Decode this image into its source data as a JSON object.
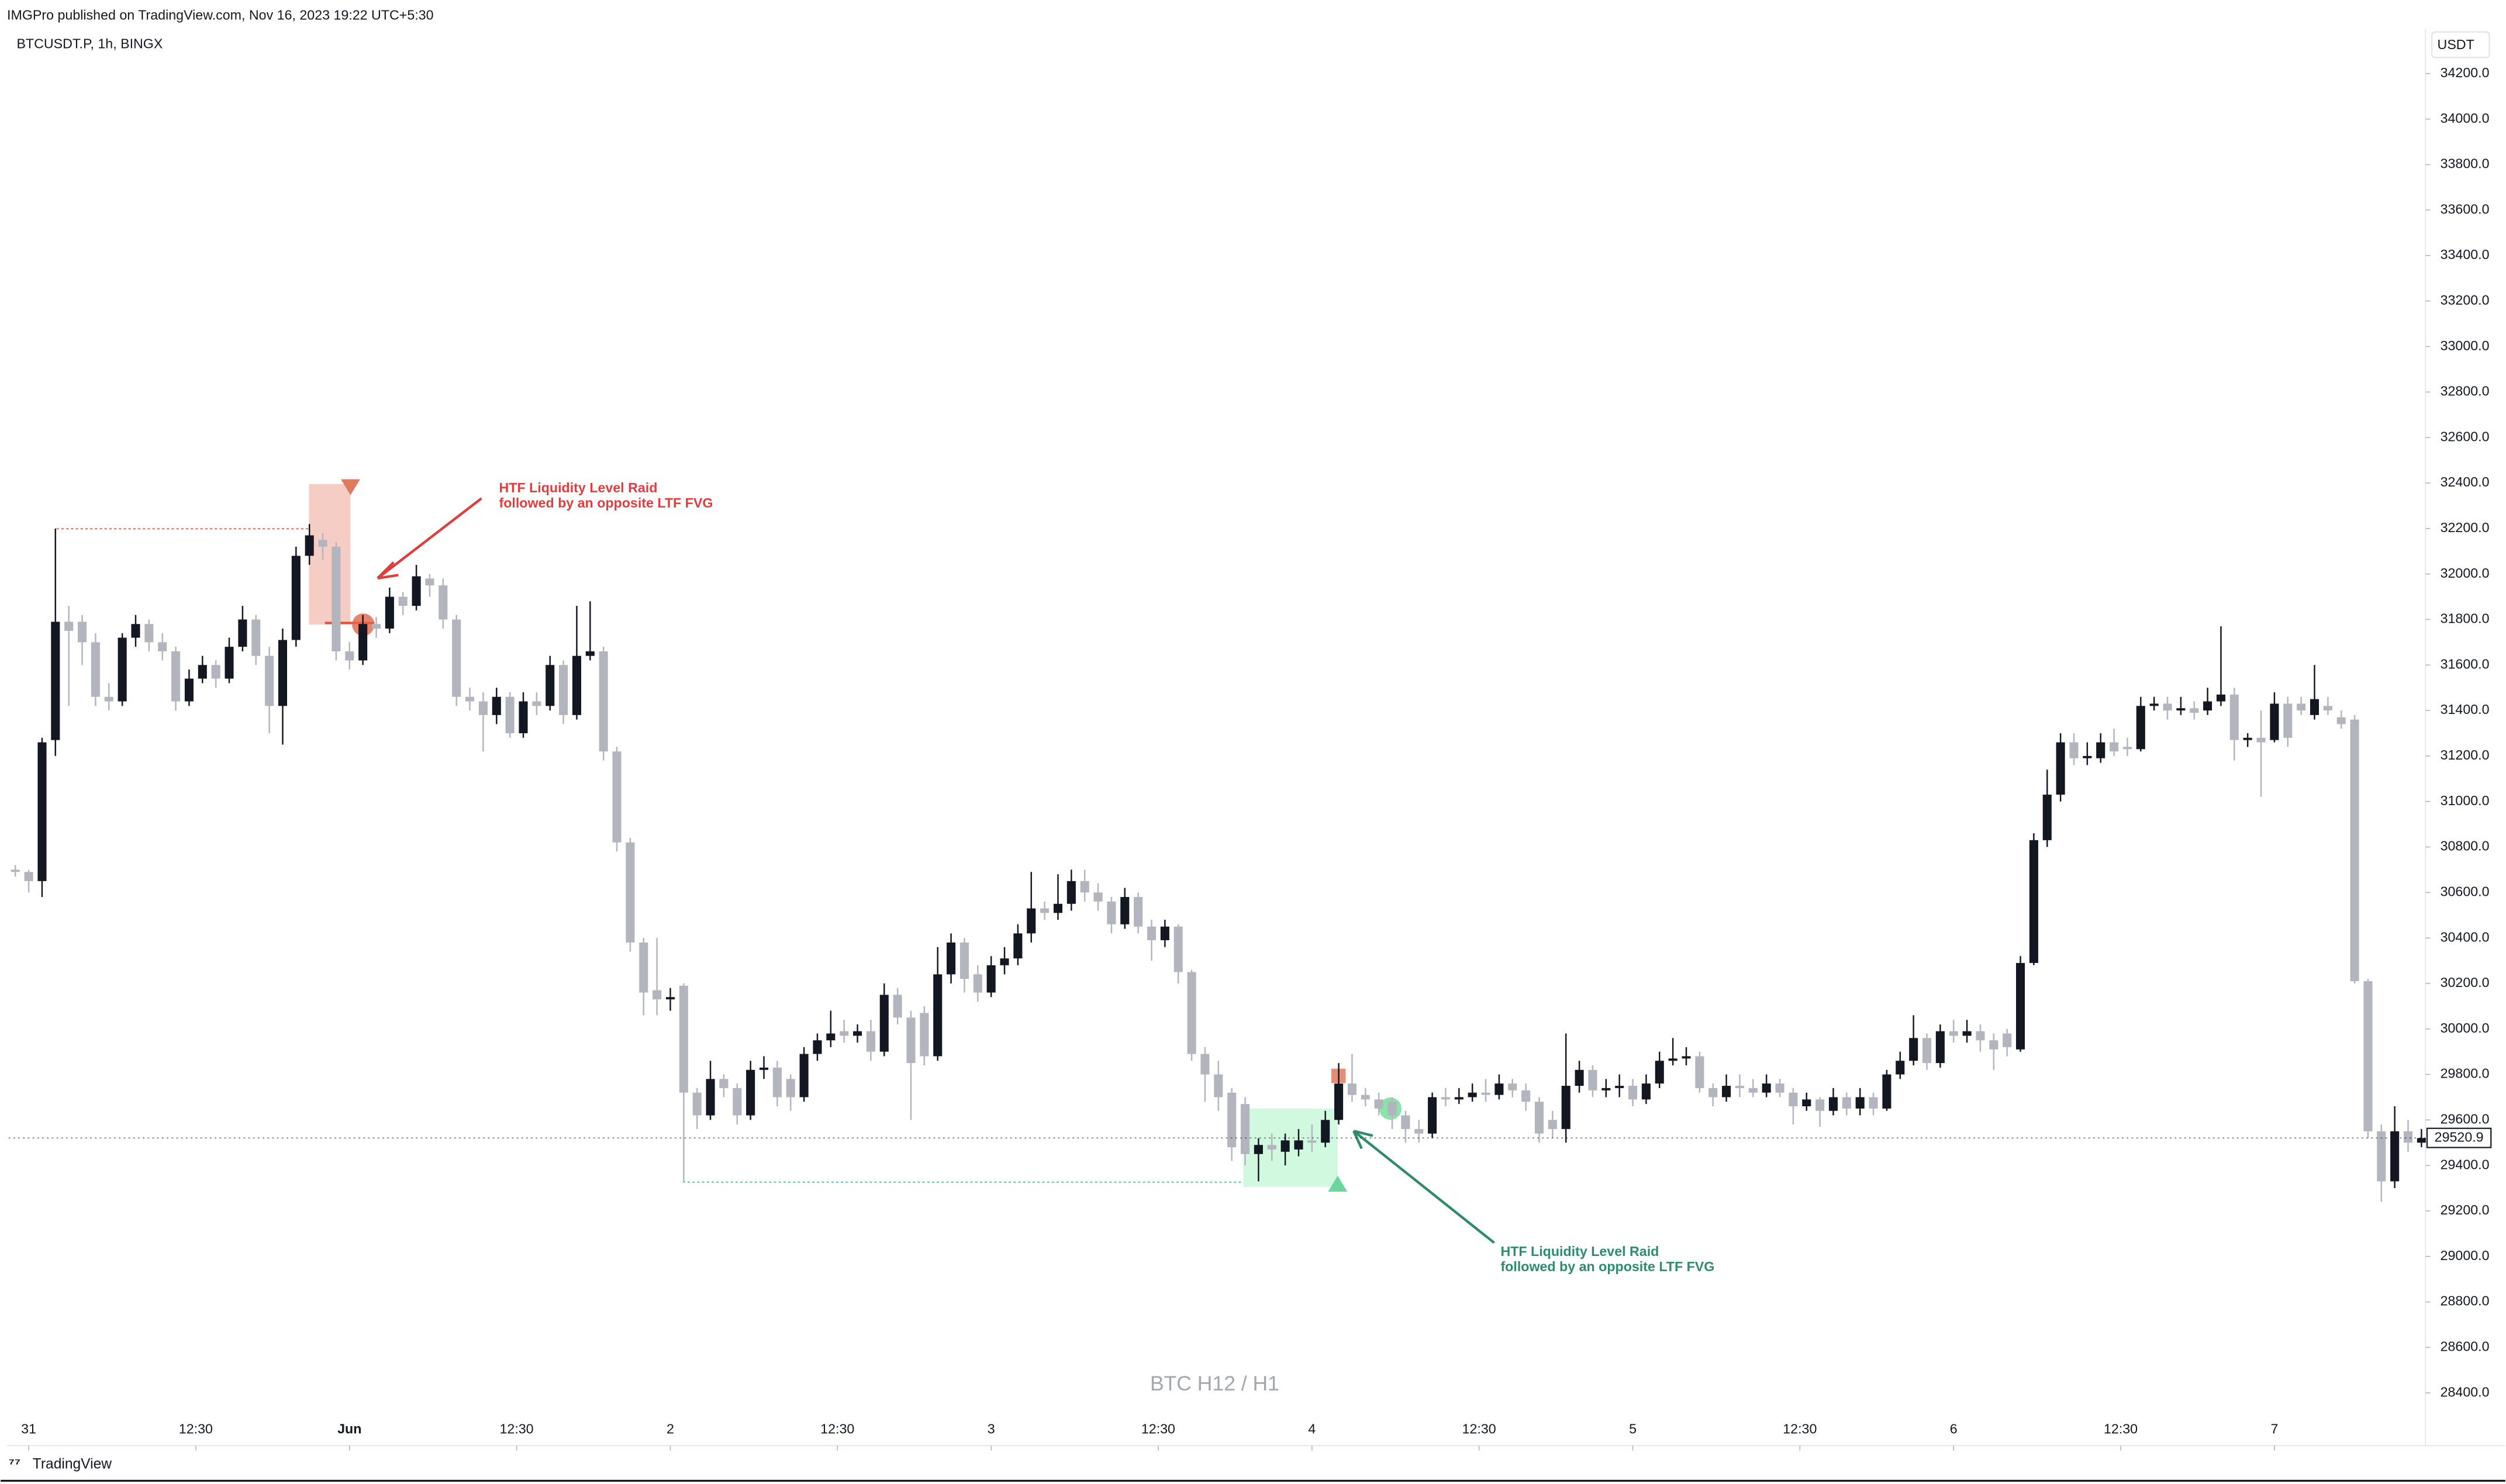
{
  "chart_data": {
    "type": "candlestick",
    "header": "IMGPro published on TradingView.com, Nov 16, 2023 19:22 UTC+5:30",
    "symbol": "BTCUSDT.P, 1h, BINGX",
    "currency": "USDT",
    "title": "BTC H12 / H1",
    "footer": "TradingView",
    "up_color": "#131722",
    "down_color": "#b2b5be",
    "last_price": 29520.9,
    "annotations": [
      {
        "lines": [
          "HTF Liquidity Level Raid",
          "followed by an opposite LTF FVG"
        ],
        "color": "#e03e3e"
      },
      {
        "lines": [
          "HTF Liquidity Level Raid",
          "followed by an opposite LTF FVG"
        ],
        "color": "#2e8b6b"
      }
    ],
    "xlim": [
      -0.5,
      180.3
    ],
    "xticks": [
      {
        "value": 1,
        "label": "31"
      },
      {
        "value": 13.5,
        "label": "12:30"
      },
      {
        "value": 25,
        "label": "Jun"
      },
      {
        "value": 37.5,
        "label": "12:30"
      },
      {
        "value": 49,
        "label": "2"
      },
      {
        "value": 61.5,
        "label": "12:30"
      },
      {
        "value": 73,
        "label": "3"
      },
      {
        "value": 85.5,
        "label": "12:30"
      },
      {
        "value": 97,
        "label": "4"
      },
      {
        "value": 109.5,
        "label": "12:30"
      },
      {
        "value": 121,
        "label": "5"
      },
      {
        "value": 133.5,
        "label": "12:30"
      },
      {
        "value": 145,
        "label": "6"
      },
      {
        "value": 157.5,
        "label": "12:30"
      },
      {
        "value": 169,
        "label": "7"
      }
    ],
    "ylim": [
      28168,
      34397
    ],
    "yticks": [
      {
        "value": 28400,
        "label": "28400.0"
      },
      {
        "value": 28600,
        "label": "28600.0"
      },
      {
        "value": 28800,
        "label": "28800.0"
      },
      {
        "value": 29000,
        "label": "29000.0"
      },
      {
        "value": 29200,
        "label": "29200.0"
      },
      {
        "value": 29400,
        "label": "29400.0"
      },
      {
        "value": 29600,
        "label": "29600.0"
      },
      {
        "value": 29800,
        "label": "29800.0"
      },
      {
        "value": 30000,
        "label": "30000.0"
      },
      {
        "value": 30200,
        "label": "30200.0"
      },
      {
        "value": 30400,
        "label": "30400.0"
      },
      {
        "value": 30600,
        "label": "30600.0"
      },
      {
        "value": 30800,
        "label": "30800.0"
      },
      {
        "value": 31000,
        "label": "31000.0"
      },
      {
        "value": 31200,
        "label": "31200.0"
      },
      {
        "value": 31400,
        "label": "31400.0"
      },
      {
        "value": 31600,
        "label": "31600.0"
      },
      {
        "value": 31800,
        "label": "31800.0"
      },
      {
        "value": 32000,
        "label": "32000.0"
      },
      {
        "value": 32200,
        "label": "32200.0"
      },
      {
        "value": 32400,
        "label": "32400.0"
      },
      {
        "value": 32600,
        "label": "32600.0"
      },
      {
        "value": 32800,
        "label": "32800.0"
      },
      {
        "value": 33000,
        "label": "33000.0"
      },
      {
        "value": 33200,
        "label": "33200.0"
      },
      {
        "value": 33400,
        "label": "33400.0"
      },
      {
        "value": 33600,
        "label": "33600.0"
      },
      {
        "value": 33800,
        "label": "33800.0"
      },
      {
        "value": 34000,
        "label": "34000.0"
      },
      {
        "value": 34200,
        "label": "34200.0"
      }
    ],
    "open": [
      30700,
      30690,
      30650,
      31270,
      31790,
      31790,
      31700,
      31460,
      31440,
      31720,
      31780,
      31700,
      31660,
      31440,
      31540,
      31600,
      31540,
      31680,
      31800,
      31640,
      31420,
      31710,
      32080,
      32150,
      32120,
      31660,
      31620,
      31780,
      31760,
      31900,
      31860,
      31980,
      31950,
      31800,
      31460,
      31440,
      31380,
      31460,
      31300,
      31440,
      31420,
      31600,
      31380,
      31640,
      31660,
      31220,
      30820,
      30380,
      30170,
      30130,
      30190,
      29720,
      29620,
      29780,
      29740,
      29620,
      29820,
      29830,
      29780,
      29700,
      29890,
      29950,
      29990,
      29970,
      29990,
      29900,
      30150,
      30050,
      30070,
      29880,
      30240,
      30380,
      30240,
      30160,
      30280,
      30310,
      30420,
      30530,
      30510,
      30550,
      30650,
      30600,
      30560,
      30460,
      30580,
      30450,
      30390,
      30450,
      30250,
      29890,
      29800,
      29720,
      29670,
      29450,
      29490,
      29460,
      29470,
      29510,
      29500,
      29600,
      29760,
      29710,
      29690,
      29680,
      29620,
      29560,
      29540,
      29700,
      29690,
      29700,
      29720,
      29710,
      29760,
      29730,
      29680,
      29600,
      29560,
      29750,
      29820,
      29730,
      29740,
      29750,
      29690,
      29760,
      29860,
      29870,
      29880,
      29740,
      29700,
      29750,
      29740,
      29720,
      29760,
      29720,
      29660,
      29690,
      29640,
      29700,
      29650,
      29700,
      29650,
      29800,
      29860,
      29960,
      29850,
      29990,
      29970,
      29990,
      29950,
      29980,
      29910,
      30290,
      30830,
      31030,
      31260,
      31190,
      31190,
      31260,
      31240,
      31230,
      31420,
      31430,
      31400,
      31410,
      31400,
      31440,
      31470,
      31270,
      31280,
      31270,
      31430,
      31430,
      31380,
      31420,
      31370,
      31360,
      30210,
      29550,
      29330,
      29550,
      29500
    ],
    "high": [
      30720,
      30700,
      31280,
      32200,
      31860,
      31820,
      31740,
      31520,
      31740,
      31820,
      31800,
      31740,
      31680,
      31580,
      31640,
      31620,
      31720,
      31860,
      31820,
      31680,
      31760,
      32120,
      32220,
      32180,
      32140,
      31700,
      31820,
      31810,
      31940,
      31920,
      32040,
      32000,
      31980,
      31820,
      31500,
      31480,
      31500,
      31480,
      31480,
      31480,
      31640,
      31620,
      31860,
      31880,
      31680,
      31240,
      30840,
      30400,
      30400,
      30180,
      30200,
      29740,
      29860,
      29800,
      29760,
      29860,
      29880,
      29860,
      29800,
      29920,
      29980,
      30080,
      30040,
      30020,
      30040,
      30200,
      30180,
      30080,
      30100,
      30360,
      30420,
      30400,
      30280,
      30320,
      30360,
      30460,
      30690,
      30560,
      30680,
      30700,
      30700,
      30640,
      30580,
      30620,
      30600,
      30480,
      30480,
      30460,
      30260,
      29920,
      29860,
      29740,
      29700,
      29520,
      29540,
      29540,
      29560,
      29580,
      29640,
      29850,
      29890,
      29740,
      29720,
      29700,
      29640,
      29600,
      29720,
      29740,
      29740,
      29760,
      29780,
      29800,
      29780,
      29760,
      29700,
      29640,
      29980,
      29860,
      29840,
      29780,
      29800,
      29780,
      29800,
      29900,
      29960,
      29920,
      29900,
      29760,
      29800,
      29800,
      29780,
      29800,
      29780,
      29740,
      29720,
      29700,
      29740,
      29720,
      29740,
      29720,
      29820,
      29900,
      30060,
      29980,
      30020,
      30040,
      30040,
      30020,
      29980,
      30000,
      30320,
      30860,
      31140,
      31300,
      31300,
      31260,
      31300,
      31320,
      31280,
      31460,
      31460,
      31460,
      31460,
      31440,
      31500,
      31770,
      31500,
      31300,
      31400,
      31480,
      31460,
      31460,
      31600,
      31460,
      31400,
      31380,
      30220,
      29580,
      29660,
      29600,
      29560
    ],
    "low": [
      30670,
      30600,
      30580,
      31200,
      31420,
      31600,
      31420,
      31400,
      31420,
      31680,
      31660,
      31620,
      31400,
      31420,
      31520,
      31500,
      31520,
      31660,
      31600,
      31300,
      31250,
      31680,
      32040,
      32060,
      31620,
      31580,
      31600,
      31720,
      31740,
      31820,
      31840,
      31900,
      31760,
      31420,
      31400,
      31220,
      31340,
      31280,
      31280,
      31380,
      31400,
      31340,
      31360,
      31620,
      31180,
      30780,
      30340,
      30060,
      30060,
      30080,
      29330,
      29560,
      29600,
      29700,
      29580,
      29600,
      29780,
      29660,
      29640,
      29680,
      29860,
      29920,
      29940,
      29940,
      29860,
      29880,
      30020,
      29600,
      29840,
      29860,
      30200,
      30160,
      30120,
      30140,
      30240,
      30280,
      30380,
      30480,
      30480,
      30520,
      30560,
      30520,
      30420,
      30440,
      30420,
      30300,
      30360,
      30200,
      29860,
      29680,
      29640,
      29420,
      29400,
      29330,
      29420,
      29400,
      29440,
      29460,
      29480,
      29580,
      29680,
      29660,
      29620,
      29560,
      29500,
      29500,
      29520,
      29660,
      29670,
      29680,
      29680,
      29690,
      29700,
      29640,
      29500,
      29520,
      29500,
      29720,
      29700,
      29700,
      29700,
      29660,
      29670,
      29740,
      29840,
      29840,
      29720,
      29660,
      29680,
      29700,
      29700,
      29700,
      29700,
      29580,
      29640,
      29570,
      29620,
      29620,
      29620,
      29620,
      29640,
      29780,
      29840,
      29820,
      29830,
      29940,
      29940,
      29900,
      29820,
      29880,
      29900,
      30280,
      30800,
      31000,
      31160,
      31160,
      31170,
      31200,
      31200,
      31220,
      31400,
      31360,
      31380,
      31360,
      31380,
      31420,
      31180,
      31240,
      31020,
      31260,
      31240,
      31380,
      31360,
      31380,
      31320,
      30200,
      29520,
      29240,
      29300,
      29460,
      29480
    ],
    "close": [
      30690,
      30650,
      31260,
      31790,
      31750,
      31700,
      31460,
      31440,
      31720,
      31780,
      31700,
      31660,
      31440,
      31540,
      31600,
      31540,
      31680,
      31800,
      31640,
      31420,
      31710,
      32080,
      32170,
      32120,
      31660,
      31620,
      31780,
      31760,
      31900,
      31860,
      31990,
      31950,
      31800,
      31460,
      31440,
      31380,
      31460,
      31300,
      31440,
      31420,
      31600,
      31380,
      31640,
      31660,
      31220,
      30820,
      30380,
      30160,
      30130,
      30140,
      29720,
      29620,
      29780,
      29740,
      29620,
      29820,
      29830,
      29700,
      29700,
      29890,
      29950,
      29980,
      29970,
      29990,
      29900,
      30150,
      30050,
      29850,
      29880,
      30240,
      30380,
      30220,
      30160,
      30280,
      30310,
      30420,
      30530,
      30510,
      30550,
      30650,
      30600,
      30560,
      30460,
      30580,
      30450,
      30390,
      30450,
      30250,
      29890,
      29800,
      29700,
      29480,
      29450,
      29490,
      29470,
      29510,
      29510,
      29500,
      29600,
      29760,
      29710,
      29690,
      29650,
      29620,
      29560,
      29540,
      29700,
      29690,
      29700,
      29720,
      29710,
      29760,
      29730,
      29680,
      29540,
      29560,
      29750,
      29820,
      29730,
      29740,
      29750,
      29690,
      29760,
      29860,
      29870,
      29880,
      29740,
      29700,
      29750,
      29740,
      29720,
      29760,
      29720,
      29660,
      29690,
      29640,
      29700,
      29650,
      29700,
      29650,
      29800,
      29860,
      29960,
      29850,
      29990,
      29970,
      29990,
      29950,
      29910,
      29920,
      30290,
      30830,
      31030,
      31260,
      31190,
      31200,
      31260,
      31220,
      31230,
      31420,
      31430,
      31400,
      31410,
      31390,
      31440,
      31470,
      31270,
      31280,
      31260,
      31430,
      31280,
      31400,
      31450,
      31400,
      31340,
      30210,
      29550,
      29330,
      29550,
      29500,
      29520
    ]
  }
}
